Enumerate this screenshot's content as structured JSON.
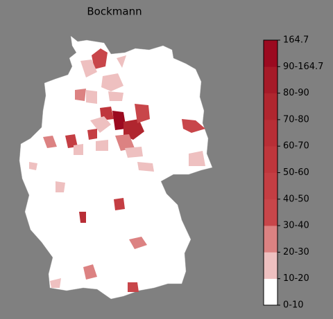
{
  "title": "Bockmann",
  "legend": {
    "labels": [
      "0-10",
      "10-20",
      "20-30",
      "30-40",
      "40-50",
      "50-60",
      "60-70",
      "70-80",
      "80-90",
      "90-164.7",
      "164.7"
    ],
    "colors": [
      "#ffffff",
      "#eec0c0",
      "#dc8282",
      "#c8464a",
      "#c43e43",
      "#bf363c",
      "#b82e36",
      "#b0262f",
      "#a61a28",
      "#9b0a20"
    ]
  }
}
